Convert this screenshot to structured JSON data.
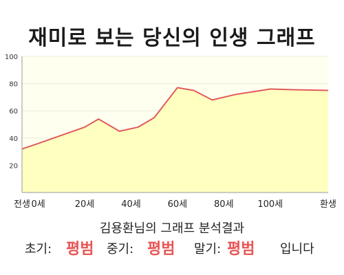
{
  "title": "재미로 보는 당신의 인생 그래프",
  "summary": "김용환님의 그래프 분석결과",
  "verdict": {
    "early_label": "초기:",
    "early_value": "평범",
    "mid_label": "중기:",
    "mid_value": "평범",
    "late_label": "말기:",
    "late_value": "평범",
    "suffix": "입니다"
  },
  "colors": {
    "line": "#e05a5a",
    "fill": "#ffffc0",
    "plot_bg": "#fffff0",
    "highlight": "#e85555"
  },
  "chart_data": {
    "type": "area",
    "x": [
      -7,
      0,
      10,
      20,
      26,
      35,
      43,
      50,
      60,
      67,
      75,
      85,
      100,
      110,
      125
    ],
    "y": [
      32,
      36,
      42,
      48,
      54,
      45,
      48,
      55,
      77,
      75,
      68,
      72,
      76,
      75.5,
      75
    ],
    "xlim": [
      -7,
      125
    ],
    "ylim": [
      0,
      100
    ],
    "x_ticks": [
      {
        "value": -7,
        "label": "전생"
      },
      {
        "value": 0,
        "label": "0세"
      },
      {
        "value": 20,
        "label": "20세"
      },
      {
        "value": 40,
        "label": "40세"
      },
      {
        "value": 60,
        "label": "60세"
      },
      {
        "value": 80,
        "label": "80세"
      },
      {
        "value": 100,
        "label": "100세"
      },
      {
        "value": 125,
        "label": "환생"
      }
    ],
    "y_ticks": [
      20,
      40,
      60,
      80,
      100
    ],
    "grid": true,
    "legend": "none"
  }
}
